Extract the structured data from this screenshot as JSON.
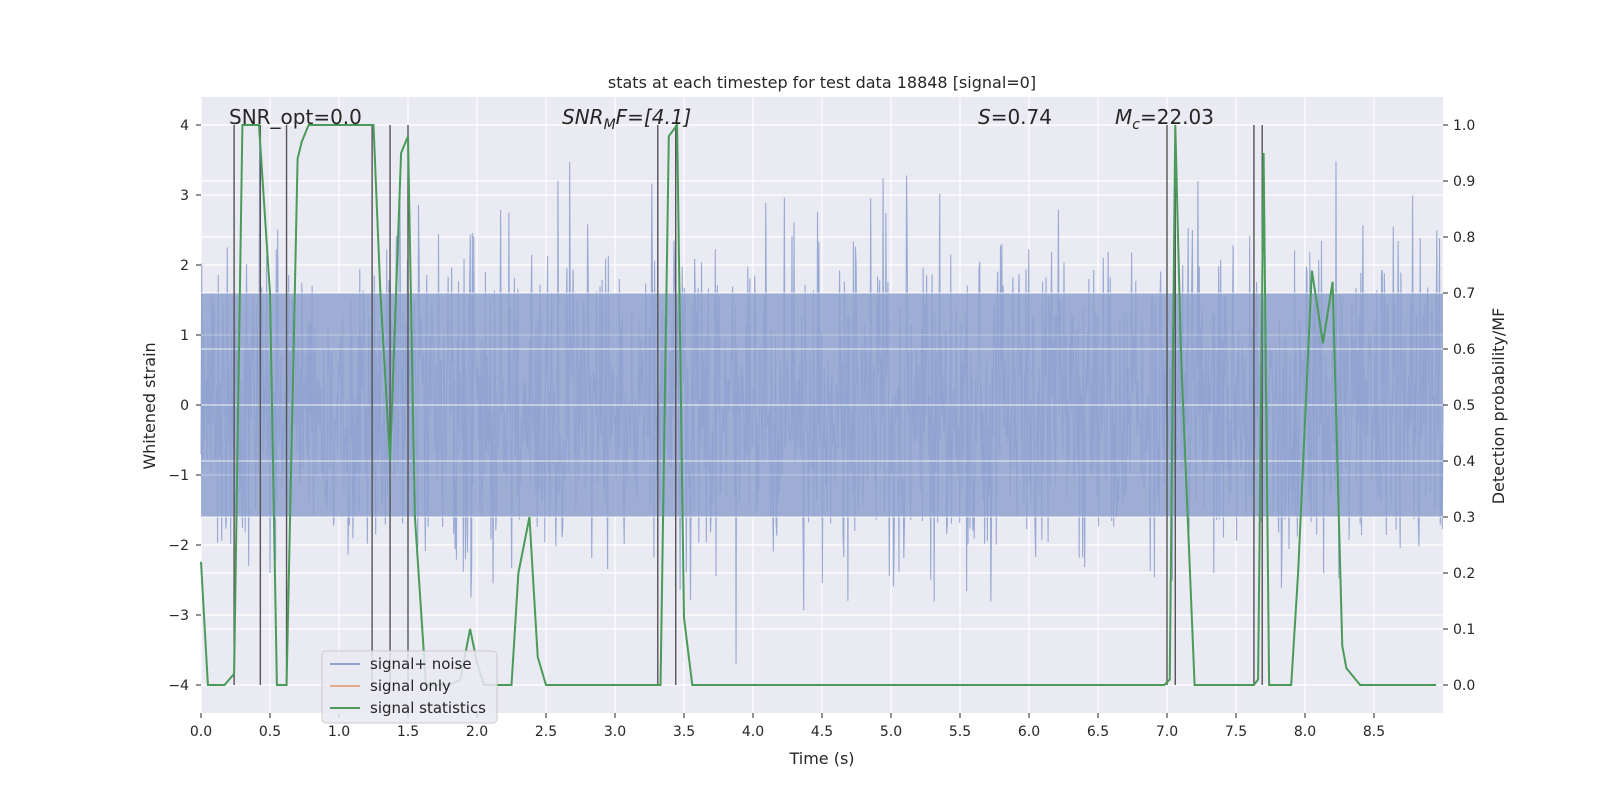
{
  "chart_data": {
    "type": "line",
    "title": "stats at each timestep for test data 18848 [signal=0]",
    "xlabel": "Time (s)",
    "ylabel": "Whitened strain",
    "y2label": "Detection probability/MF",
    "xlim": [
      0,
      9.0
    ],
    "ylim": [
      -4.4,
      4.4
    ],
    "y2lim": [
      -0.05,
      1.05
    ],
    "xticks": [
      0.0,
      0.5,
      1.0,
      1.5,
      2.0,
      2.5,
      3.0,
      3.5,
      4.0,
      4.5,
      5.0,
      5.5,
      6.0,
      6.5,
      7.0,
      7.5,
      8.0,
      8.5
    ],
    "yticks": [
      4,
      3,
      2,
      1,
      0,
      -1,
      -2,
      -3,
      -4
    ],
    "y2ticks": [
      1.0,
      0.9,
      0.8,
      0.7,
      0.6,
      0.5,
      0.4,
      0.3,
      0.2,
      0.1,
      0.0
    ],
    "grid": true,
    "legend": {
      "location": "lower-left",
      "entries": [
        {
          "label": "signal+ noise",
          "color": "#8fa2cf"
        },
        {
          "label": "signal only",
          "color": "#e8a98a"
        },
        {
          "label": "signal statistics",
          "color": "#4a9a5a"
        }
      ]
    },
    "annotations": {
      "snr_opt": "SNR_opt=0.0",
      "snr_mf_name": "SNR",
      "snr_mf_sub": "M",
      "snr_mf_rest": "F=[4.1]",
      "s_name": "S",
      "s_rest": "=0.74",
      "mc_name": "M",
      "mc_sub": "c",
      "mc_rest": "=22.03"
    },
    "series": [
      {
        "name": "signal+ noise",
        "axis": "left",
        "description": "whitened strain time series, noise with amplitude roughly within -4 to 4",
        "duration": 9.0,
        "samples": 1800,
        "typical_envelope": [
          -1.6,
          1.6
        ],
        "max_amplitude": 4.0,
        "color": "#8fa2cf"
      },
      {
        "name": "signal statistics",
        "axis": "right",
        "color": "#4a9a5a",
        "x": [
          0.0,
          0.05,
          0.17,
          0.24,
          0.3,
          0.42,
          0.5,
          0.55,
          0.62,
          0.7,
          0.73,
          0.78,
          0.9,
          0.97,
          1.1,
          1.25,
          1.3,
          1.37,
          1.45,
          1.5,
          1.55,
          1.63,
          1.72,
          1.8,
          1.88,
          1.95,
          2.0,
          2.05,
          2.13,
          2.25,
          2.3,
          2.38,
          2.44,
          2.5,
          2.6,
          2.8,
          3.0,
          3.3,
          3.33,
          3.39,
          3.45,
          3.5,
          3.56,
          3.8,
          4.5,
          5.0,
          5.5,
          6.0,
          6.5,
          6.98,
          7.02,
          7.06,
          7.1,
          7.2,
          7.3,
          7.5,
          7.63,
          7.66,
          7.7,
          7.74,
          7.8,
          7.9,
          7.95,
          8.05,
          8.13,
          8.2,
          8.27,
          8.3,
          8.4,
          8.6,
          8.95
        ],
        "y": [
          0.22,
          0.0,
          0.0,
          0.02,
          1.0,
          1.0,
          0.7,
          0.0,
          0.0,
          0.94,
          0.97,
          1.0,
          1.0,
          1.0,
          1.0,
          1.0,
          0.7,
          0.4,
          0.95,
          0.98,
          0.3,
          0.0,
          0.0,
          0.0,
          0.01,
          0.1,
          0.04,
          0.0,
          0.0,
          0.0,
          0.2,
          0.3,
          0.05,
          0.0,
          0.0,
          0.0,
          0.0,
          0.0,
          0.0,
          0.98,
          1.0,
          0.12,
          0.0,
          0.0,
          0.0,
          0.0,
          0.0,
          0.0,
          0.0,
          0.0,
          0.01,
          1.0,
          0.6,
          0.0,
          0.0,
          0.0,
          0.0,
          0.01,
          0.95,
          0.0,
          0.0,
          0.0,
          0.2,
          0.74,
          0.61,
          0.72,
          0.07,
          0.03,
          0.0,
          0.0,
          0.0
        ]
      }
    ],
    "vertical_lines": [
      0.24,
      0.43,
      0.62,
      1.24,
      1.37,
      1.5,
      3.31,
      3.44,
      7.0,
      7.06,
      7.63,
      7.69
    ]
  }
}
